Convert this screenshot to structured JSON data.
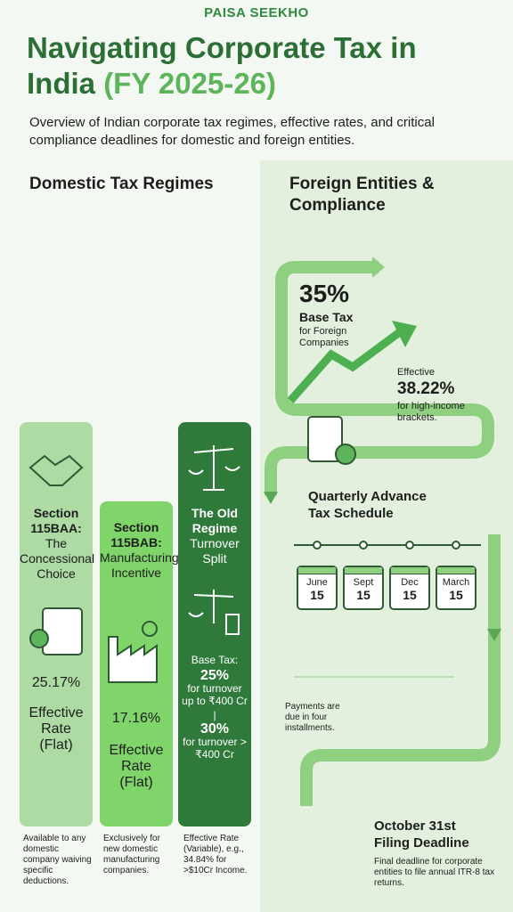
{
  "header": {
    "brand": "PAISA SEEKHO",
    "title": "Navigating Corporate Tax in India",
    "title_highlight": "(FY 2025-26)",
    "subtitle": "Overview of Indian corporate tax regimes, effective rates, and critical compliance deadlines for domestic and foreign entities."
  },
  "domestic": {
    "heading": "Domestic Tax Regimes",
    "regimes": [
      {
        "name": "Section 115BAA:",
        "desc": "The Concessional Choice",
        "rate": "25.17%",
        "rate_label": "Effective Rate (Flat)",
        "note": "Available to any domestic company waiving specific deductions."
      },
      {
        "name": "Section 115BAB:",
        "desc": "Manufacturing Incentive",
        "rate": "17.16%",
        "rate_label": "Effective Rate (Flat)",
        "note": "Exclusively for new domestic manufacturing companies."
      },
      {
        "name": "The Old Regime",
        "desc": "Turnover Split",
        "base_label": "Base Tax:",
        "slabs": [
          {
            "rate": "25%",
            "text": "for turnover up to ₹400 Cr"
          },
          {
            "rate": "30%",
            "text": "for turnover > ₹400 Cr"
          }
        ],
        "note": "Effective Rate (Variable), e.g., 34.84% for >$10Cr Income."
      }
    ]
  },
  "foreign": {
    "heading": "Foreign Entities & Compliance",
    "base_rate": "35%",
    "base_label": "Base Tax",
    "base_desc": "for Foreign Companies",
    "effective_prefix": "Effective",
    "effective_rate": "38.22%",
    "effective_desc": "for high-income brackets.",
    "schedule_title": "Quarterly Advance Tax Schedule",
    "installments": [
      {
        "month": "June",
        "day": "15"
      },
      {
        "month": "Sept",
        "day": "15"
      },
      {
        "month": "Dec",
        "day": "15"
      },
      {
        "month": "March",
        "day": "15"
      }
    ],
    "payments_note": "Payments are due in four installments.",
    "deadline_title": "October 31st Filing Deadline",
    "deadline_desc": "Final deadline for corporate entities to file annual ITR-8 tax returns."
  }
}
